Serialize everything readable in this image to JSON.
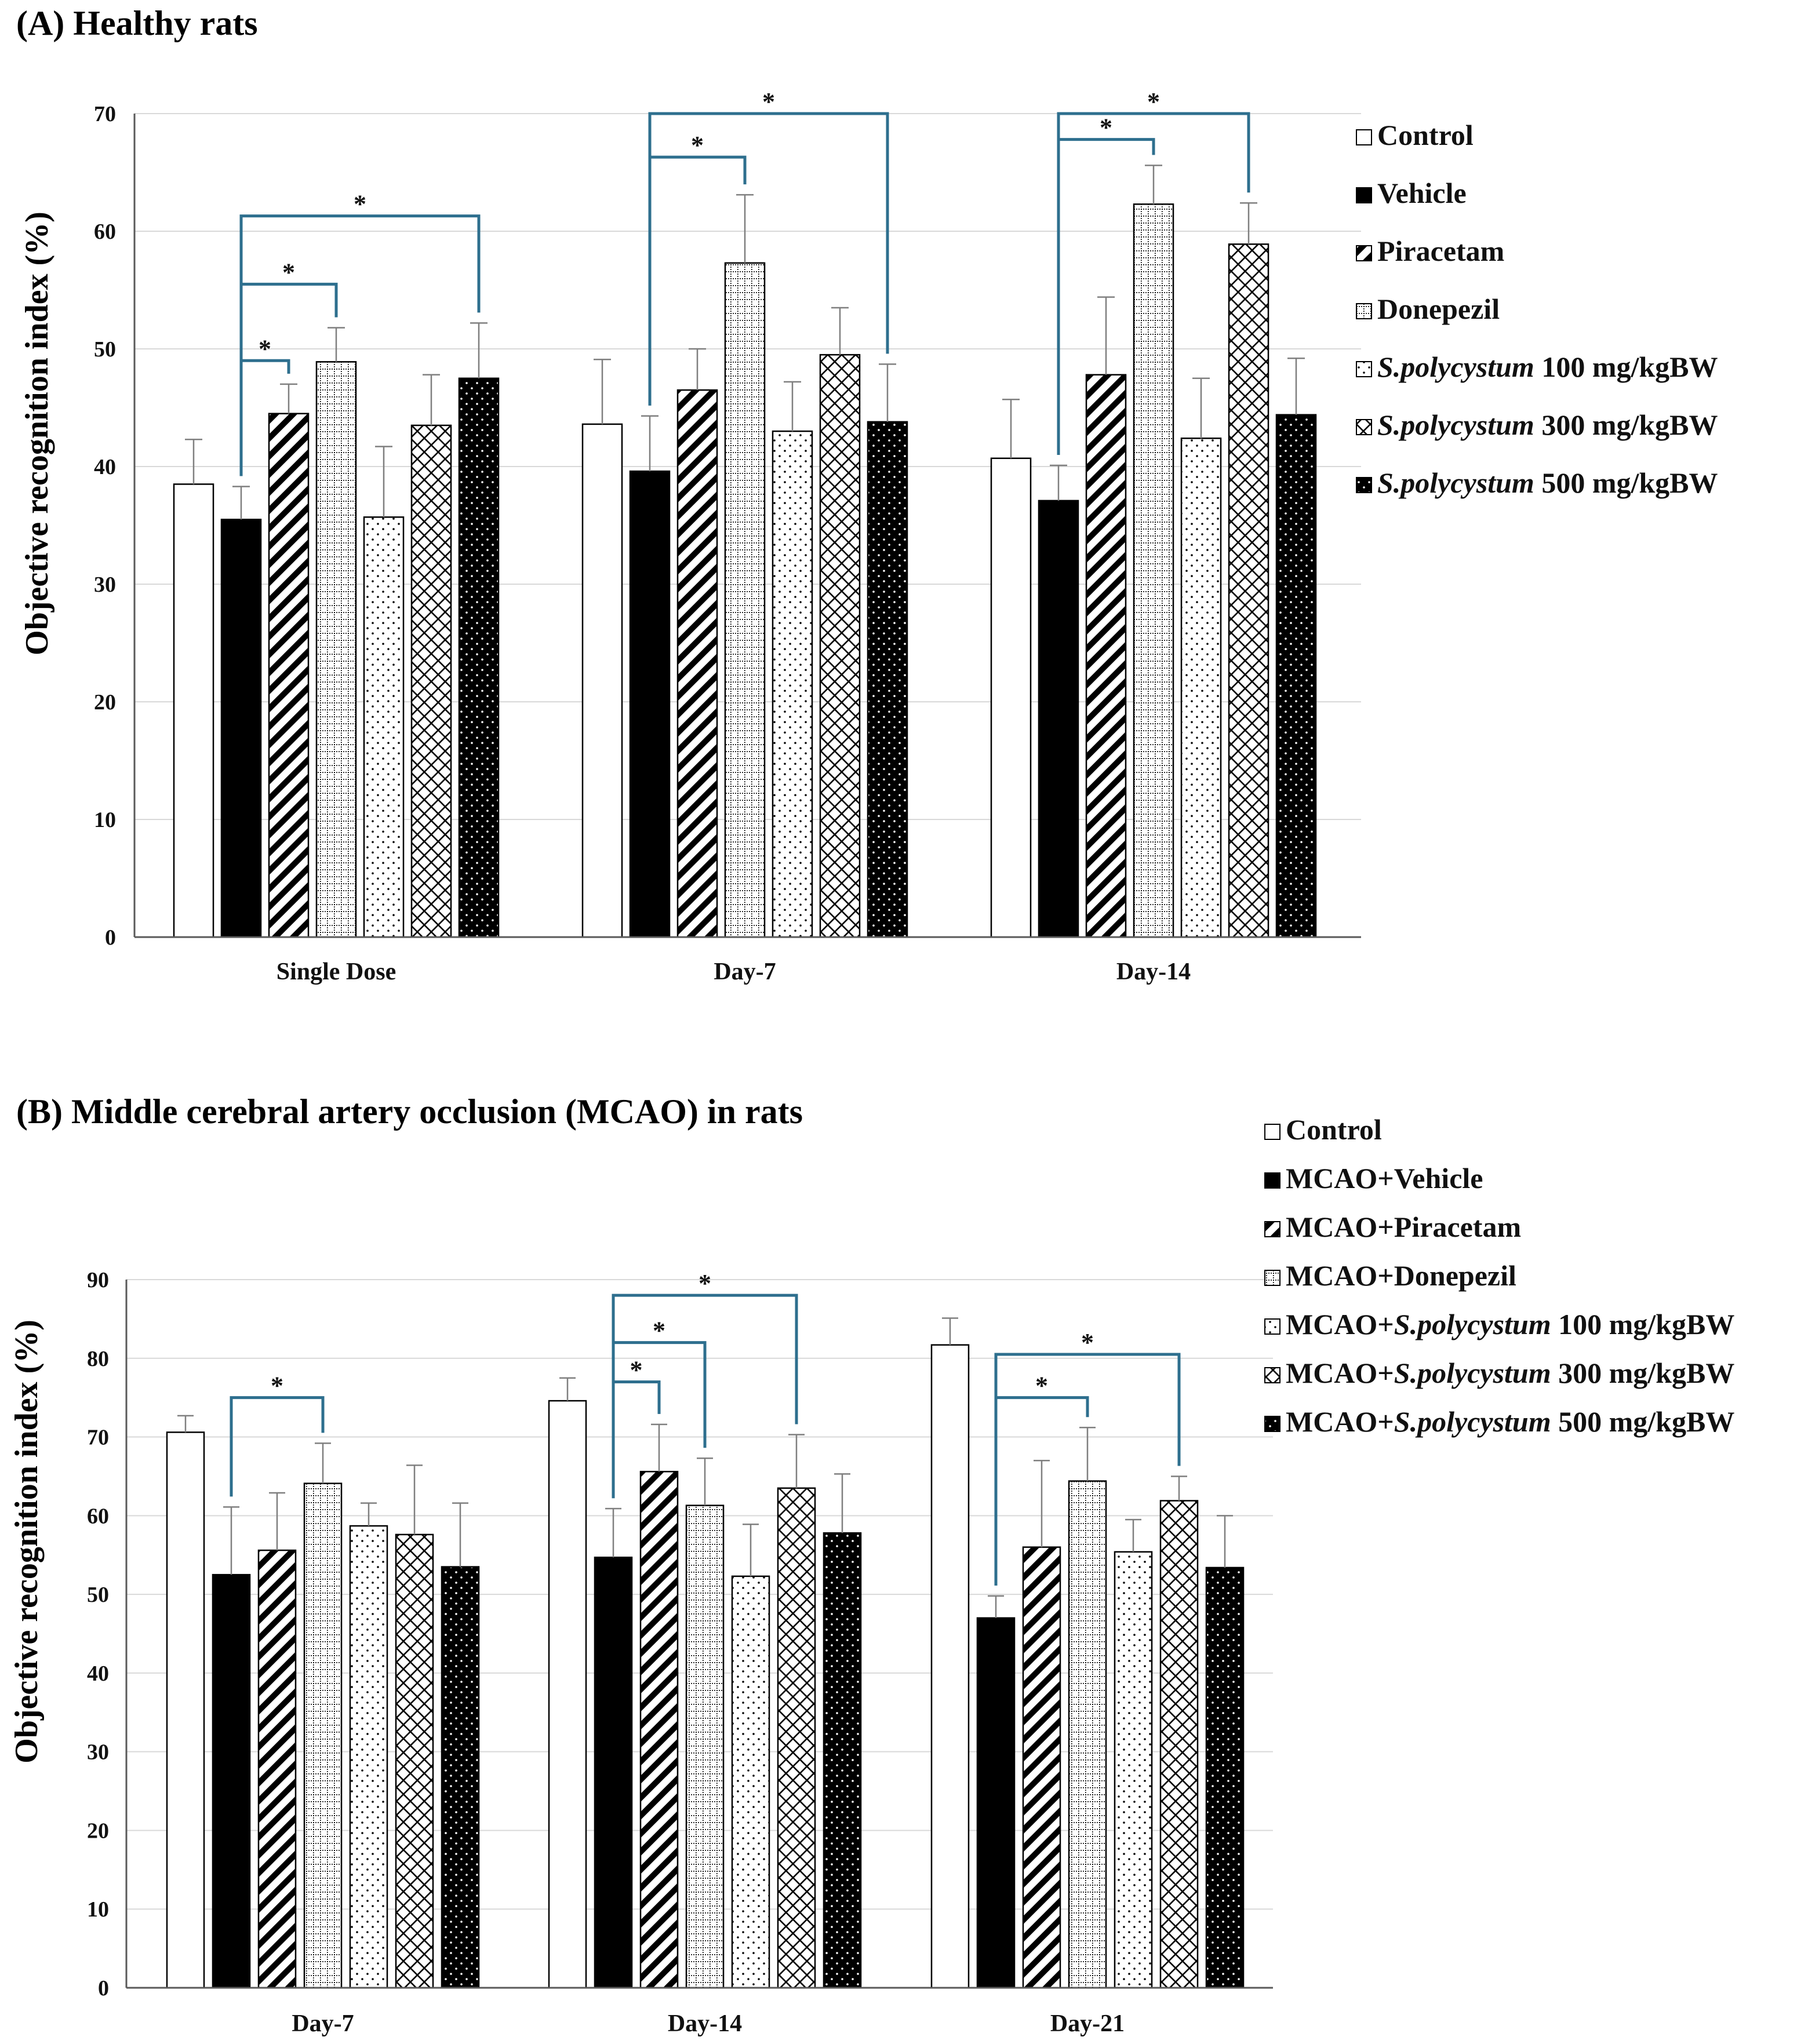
{
  "colors": {
    "axis": "#595959",
    "grid": "#d9d9d9",
    "bar_edge": "#000000",
    "error": "#7f7f7f",
    "bracket": "#2e6f8e",
    "text": "#111111"
  },
  "chart_data": [
    {
      "type": "bar",
      "title": "(A) Healthy rats",
      "ylabel": "Objective recognition index (%)",
      "ylim": [
        0,
        70
      ],
      "yticks": [
        "0",
        "10",
        "20",
        "30",
        "40",
        "50",
        "60",
        "70"
      ],
      "categories": [
        "Single Dose",
        "Day-7",
        "Day-14"
      ],
      "legend": [
        {
          "prefix": "Control",
          "species": "",
          "suffix": ""
        },
        {
          "prefix": "Vehicle",
          "species": "",
          "suffix": ""
        },
        {
          "prefix": "Piracetam",
          "species": "",
          "suffix": ""
        },
        {
          "prefix": "Donepezil",
          "species": "",
          "suffix": ""
        },
        {
          "prefix": "",
          "species": "S.polycystum",
          "suffix": " 100 mg/kgBW"
        },
        {
          "prefix": "",
          "species": "S.polycystum",
          "suffix": " 300 mg/kgBW"
        },
        {
          "prefix": "",
          "species": "S.polycystum",
          "suffix": " 500 mg/kgBW"
        }
      ],
      "series": [
        {
          "name": "Control",
          "pattern": "empty",
          "values": [
            38.5,
            43.6,
            40.7
          ],
          "errors": [
            3.8,
            5.5,
            5.0
          ]
        },
        {
          "name": "Vehicle",
          "pattern": "solid",
          "values": [
            35.5,
            39.6,
            37.1
          ],
          "errors": [
            2.8,
            4.7,
            3.0
          ]
        },
        {
          "name": "Piracetam",
          "pattern": "diag",
          "values": [
            44.5,
            46.5,
            47.8
          ],
          "errors": [
            2.5,
            3.5,
            6.6
          ]
        },
        {
          "name": "Donepezil",
          "pattern": "grid",
          "values": [
            48.9,
            57.3,
            62.3
          ],
          "errors": [
            2.9,
            5.8,
            3.3
          ]
        },
        {
          "name": "S.polycystum 100 mg/kgBW",
          "pattern": "dots",
          "values": [
            35.7,
            43.0,
            42.4
          ],
          "errors": [
            6.0,
            4.2,
            5.1
          ]
        },
        {
          "name": "S.polycystum 300 mg/kgBW",
          "pattern": "cross",
          "values": [
            43.5,
            49.5,
            58.9
          ],
          "errors": [
            4.3,
            4.0,
            3.5
          ]
        },
        {
          "name": "S.polycystum 500 mg/kgBW",
          "pattern": "darkdots",
          "values": [
            47.5,
            43.8,
            44.4
          ],
          "errors": [
            4.7,
            4.9,
            4.8
          ]
        }
      ],
      "significance": [
        {
          "category": 0,
          "from": 1,
          "to": 2,
          "level": 49.0,
          "label": "*"
        },
        {
          "category": 0,
          "from": 1,
          "to": 3,
          "level": 55.5,
          "label": "*"
        },
        {
          "category": 0,
          "from": 1,
          "to": 6,
          "level": 61.3,
          "label": "*"
        },
        {
          "category": 1,
          "from": 1,
          "to": 3,
          "level": 66.3,
          "label": "*"
        },
        {
          "category": 1,
          "from": 1,
          "to": 6,
          "level": 70.0,
          "label": "*"
        },
        {
          "category": 2,
          "from": 1,
          "to": 3,
          "level": 67.8,
          "label": "*"
        },
        {
          "category": 2,
          "from": 1,
          "to": 5,
          "level": 70.0,
          "label": "*"
        }
      ]
    },
    {
      "type": "bar",
      "title": "(B) Middle cerebral artery occlusion (MCAO) in rats",
      "ylabel": "Objective recognition index (%)",
      "ylim": [
        0,
        90
      ],
      "yticks": [
        "0",
        "10",
        "20",
        "30",
        "40",
        "50",
        "60",
        "70",
        "80",
        "90"
      ],
      "categories": [
        "Day-7",
        "Day-14",
        "Day-21"
      ],
      "legend": [
        {
          "prefix": "Control",
          "species": "",
          "suffix": ""
        },
        {
          "prefix": "MCAO+Vehicle",
          "species": "",
          "suffix": ""
        },
        {
          "prefix": "MCAO+Piracetam",
          "species": "",
          "suffix": ""
        },
        {
          "prefix": "MCAO+Donepezil",
          "species": "",
          "suffix": ""
        },
        {
          "prefix": "MCAO+",
          "species": "S.polycystum",
          "suffix": " 100 mg/kgBW"
        },
        {
          "prefix": "MCAO+",
          "species": "S.polycystum",
          "suffix": " 300 mg/kgBW"
        },
        {
          "prefix": "MCAO+",
          "species": "S.polycystum",
          "suffix": " 500 mg/kgBW"
        }
      ],
      "series": [
        {
          "name": "Control",
          "pattern": "empty",
          "values": [
            70.6,
            74.6,
            81.7
          ],
          "errors": [
            2.1,
            2.9,
            3.4
          ]
        },
        {
          "name": "MCAO+Vehicle",
          "pattern": "solid",
          "values": [
            52.5,
            54.7,
            47.0
          ],
          "errors": [
            8.6,
            6.2,
            2.8
          ]
        },
        {
          "name": "MCAO+Piracetam",
          "pattern": "diag",
          "values": [
            55.6,
            65.6,
            56.0
          ],
          "errors": [
            7.3,
            6.0,
            11.0
          ]
        },
        {
          "name": "MCAO+Donepezil",
          "pattern": "grid",
          "values": [
            64.1,
            61.3,
            64.4
          ],
          "errors": [
            5.1,
            6.0,
            6.8
          ]
        },
        {
          "name": "MCAO+S.polycystum 100 mg/kgBW",
          "pattern": "dots",
          "values": [
            58.7,
            52.3,
            55.4
          ],
          "errors": [
            2.9,
            6.6,
            4.1
          ]
        },
        {
          "name": "MCAO+S.polycystum 300 mg/kgBW",
          "pattern": "cross",
          "values": [
            57.6,
            63.5,
            61.9
          ],
          "errors": [
            8.8,
            6.8,
            3.1
          ]
        },
        {
          "name": "MCAO+S.polycystum 500 mg/kgBW",
          "pattern": "darkdots",
          "values": [
            53.5,
            57.8,
            53.4
          ],
          "errors": [
            8.1,
            7.5,
            6.6
          ]
        }
      ],
      "significance": [
        {
          "category": 0,
          "from": 1,
          "to": 3,
          "level": 75.0,
          "label": "*"
        },
        {
          "category": 1,
          "from": 1,
          "to": 2,
          "level": 77.0,
          "label": "*"
        },
        {
          "category": 1,
          "from": 1,
          "to": 3,
          "level": 82.0,
          "label": "*"
        },
        {
          "category": 1,
          "from": 1,
          "to": 5,
          "level": 88.0,
          "label": "*"
        },
        {
          "category": 2,
          "from": 1,
          "to": 3,
          "level": 75.0,
          "label": "*"
        },
        {
          "category": 2,
          "from": 1,
          "to": 5,
          "level": 80.5,
          "label": "*"
        }
      ]
    }
  ]
}
